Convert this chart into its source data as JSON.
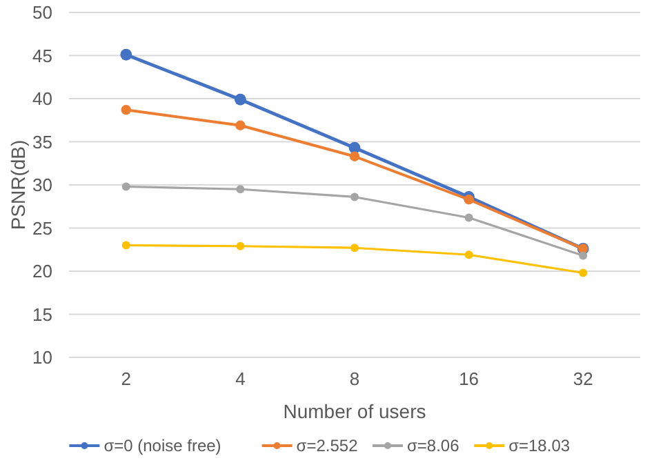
{
  "chart_data": {
    "type": "line",
    "xlabel": "Number of users",
    "ylabel": "PSNR(dB)",
    "categories": [
      "2",
      "4",
      "8",
      "16",
      "32"
    ],
    "series": [
      {
        "name": "σ=0 (noise free)",
        "color": "#4472c4",
        "values": [
          45.1,
          39.9,
          34.3,
          28.6,
          22.6
        ]
      },
      {
        "name": "σ=2.552",
        "color": "#ed7d31",
        "values": [
          38.7,
          36.9,
          33.3,
          28.3,
          22.6
        ]
      },
      {
        "name": "σ=8.06",
        "color": "#a5a5a5",
        "values": [
          29.8,
          29.5,
          28.6,
          26.2,
          21.8
        ]
      },
      {
        "name": "σ=18.03",
        "color": "#ffc000",
        "values": [
          23.0,
          22.9,
          22.7,
          21.9,
          19.8
        ]
      }
    ],
    "ylim": [
      10,
      50
    ],
    "yticks": [
      10,
      15,
      20,
      25,
      30,
      35,
      40,
      45,
      50
    ],
    "grid": "y",
    "legend": "bottom",
    "marker": "circle",
    "line_style": "solid"
  }
}
